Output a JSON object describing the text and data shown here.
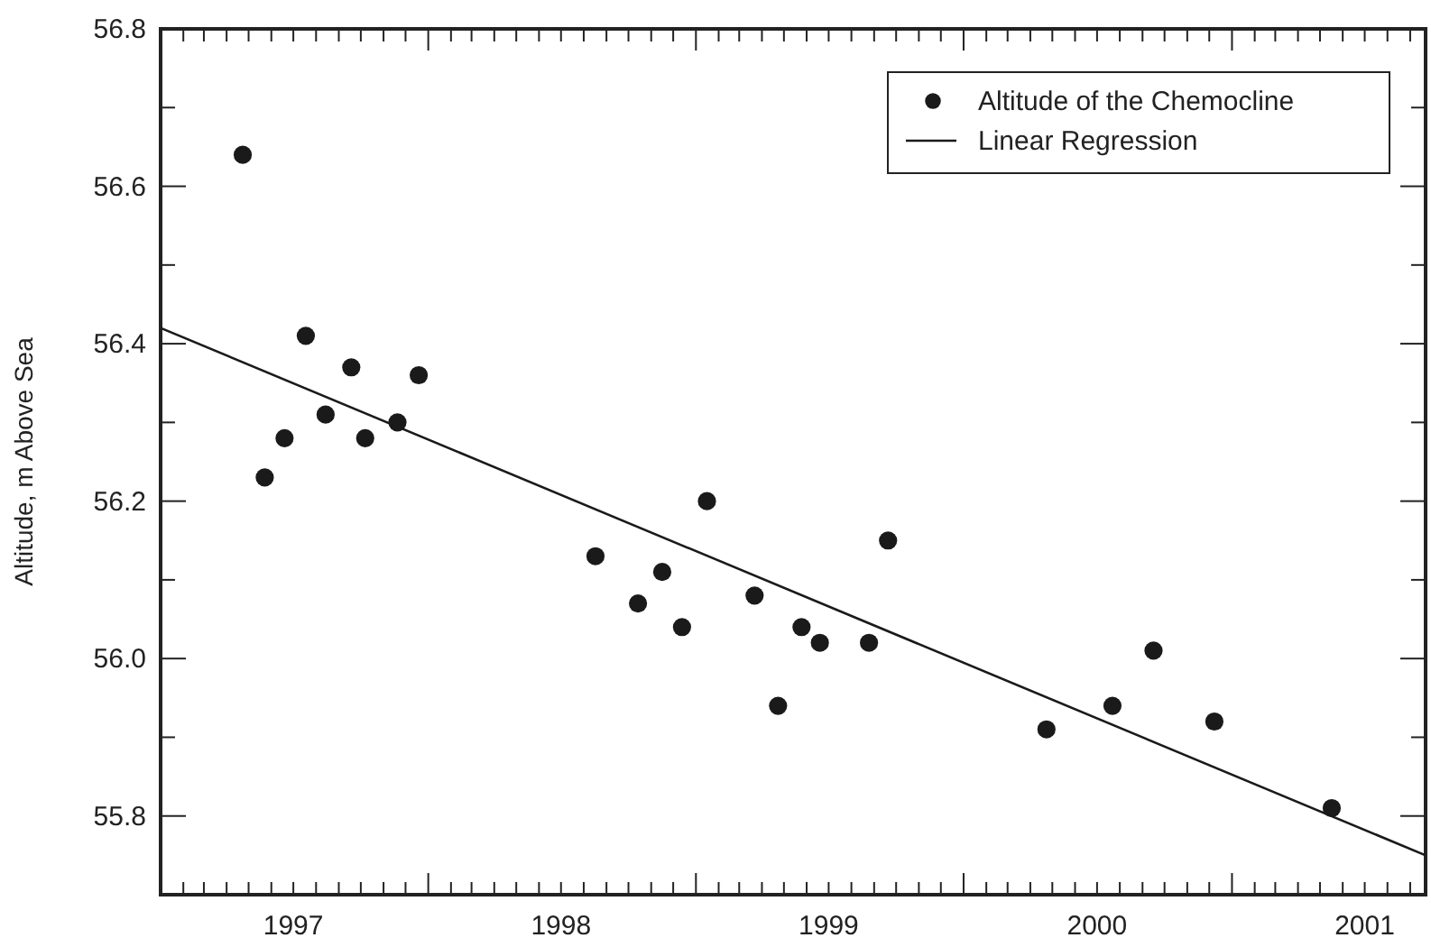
{
  "chart_data": {
    "type": "scatter",
    "ylabel": "Altitude, m Above Sea",
    "legend": "top right",
    "grid": false,
    "xlim": [
      "1997-01-01",
      "2001-09-22"
    ],
    "xticks": [
      {
        "value": "1997-01-01",
        "label": null
      },
      {
        "value": "1997-02-01",
        "label": null
      },
      {
        "value": "1997-03-01",
        "label": null
      },
      {
        "value": "1997-04-01",
        "label": null
      },
      {
        "value": "1997-05-01",
        "label": null
      },
      {
        "value": "1997-06-01",
        "label": null
      },
      {
        "value": "1997-07-01",
        "label": "1997"
      },
      {
        "value": "1997-08-01",
        "label": null
      },
      {
        "value": "1997-09-01",
        "label": null
      },
      {
        "value": "1997-10-01",
        "label": null
      },
      {
        "value": "1997-11-01",
        "label": null
      },
      {
        "value": "1997-12-01",
        "label": null
      },
      {
        "value": "1998-01-01",
        "label": null
      },
      {
        "value": "1998-02-01",
        "label": null
      },
      {
        "value": "1998-03-01",
        "label": null
      },
      {
        "value": "1998-04-01",
        "label": null
      },
      {
        "value": "1998-05-01",
        "label": null
      },
      {
        "value": "1998-06-01",
        "label": null
      },
      {
        "value": "1998-07-01",
        "label": "1998"
      },
      {
        "value": "1998-08-01",
        "label": null
      },
      {
        "value": "1998-09-01",
        "label": null
      },
      {
        "value": "1998-10-01",
        "label": null
      },
      {
        "value": "1998-11-01",
        "label": null
      },
      {
        "value": "1998-12-01",
        "label": null
      },
      {
        "value": "1999-01-01",
        "label": null
      },
      {
        "value": "1999-02-01",
        "label": null
      },
      {
        "value": "1999-03-01",
        "label": null
      },
      {
        "value": "1999-04-01",
        "label": null
      },
      {
        "value": "1999-05-01",
        "label": null
      },
      {
        "value": "1999-06-01",
        "label": null
      },
      {
        "value": "1999-07-01",
        "label": "1999"
      },
      {
        "value": "1999-08-01",
        "label": null
      },
      {
        "value": "1999-09-01",
        "label": null
      },
      {
        "value": "1999-10-01",
        "label": null
      },
      {
        "value": "1999-11-01",
        "label": null
      },
      {
        "value": "1999-12-01",
        "label": null
      },
      {
        "value": "2000-01-01",
        "label": null
      },
      {
        "value": "2000-02-01",
        "label": null
      },
      {
        "value": "2000-03-01",
        "label": null
      },
      {
        "value": "2000-04-01",
        "label": null
      },
      {
        "value": "2000-05-01",
        "label": null
      },
      {
        "value": "2000-06-01",
        "label": null
      },
      {
        "value": "2000-07-01",
        "label": "2000"
      },
      {
        "value": "2000-08-01",
        "label": null
      },
      {
        "value": "2000-09-01",
        "label": null
      },
      {
        "value": "2000-10-01",
        "label": null
      },
      {
        "value": "2000-11-01",
        "label": null
      },
      {
        "value": "2000-12-01",
        "label": null
      },
      {
        "value": "2001-01-01",
        "label": null
      },
      {
        "value": "2001-02-01",
        "label": null
      },
      {
        "value": "2001-03-01",
        "label": null
      },
      {
        "value": "2001-04-01",
        "label": null
      },
      {
        "value": "2001-05-01",
        "label": null
      },
      {
        "value": "2001-06-01",
        "label": null
      },
      {
        "value": "2001-07-01",
        "label": "2001"
      },
      {
        "value": "2001-08-01",
        "label": null
      },
      {
        "value": "2001-09-01",
        "label": null
      }
    ],
    "ylim": [
      55.7,
      56.8
    ],
    "yticks": [
      55.8,
      {
        "value": 55.9,
        "label": null
      },
      {
        "value": 56,
        "label": "56.0"
      },
      {
        "value": 56.1,
        "label": null
      },
      56.2,
      {
        "value": 56.3,
        "label": null
      },
      56.4,
      {
        "value": 56.5,
        "label": null
      },
      56.6,
      {
        "value": 56.7,
        "label": null
      },
      56.8
    ],
    "series": [
      {
        "name": "Altitude of the Chemocline",
        "marker": "circle",
        "color": "#1a1a1a",
        "x": [
          "1997-04-23",
          "1997-05-23",
          "1997-06-19",
          "1997-07-18",
          "1997-08-14",
          "1997-09-18",
          "1997-10-07",
          "1997-11-20",
          "1997-12-19",
          "1998-08-17",
          "1998-10-14",
          "1998-11-16",
          "1998-12-13",
          "1999-01-16",
          "1999-03-22",
          "1999-04-23",
          "1999-05-25",
          "1999-06-19",
          "1999-08-25",
          "1999-09-20",
          "2000-04-23",
          "2000-07-22",
          "2000-09-16",
          "2000-12-08",
          "2001-05-17"
        ],
        "values": [
          56.64,
          56.23,
          56.28,
          56.41,
          56.31,
          56.37,
          56.28,
          56.3,
          56.36,
          56.13,
          56.07,
          56.11,
          56.04,
          56.2,
          56.08,
          55.94,
          56.04,
          56.02,
          56.02,
          56.15,
          55.91,
          55.94,
          56.01,
          55.92,
          55.81
        ]
      },
      {
        "name": "Linear Regression",
        "type": "line",
        "color": "#1a1a1a",
        "line_style": "solid",
        "x": [
          "1997-01-01",
          "2001-09-22"
        ],
        "values": [
          56.42,
          55.75
        ]
      }
    ]
  }
}
